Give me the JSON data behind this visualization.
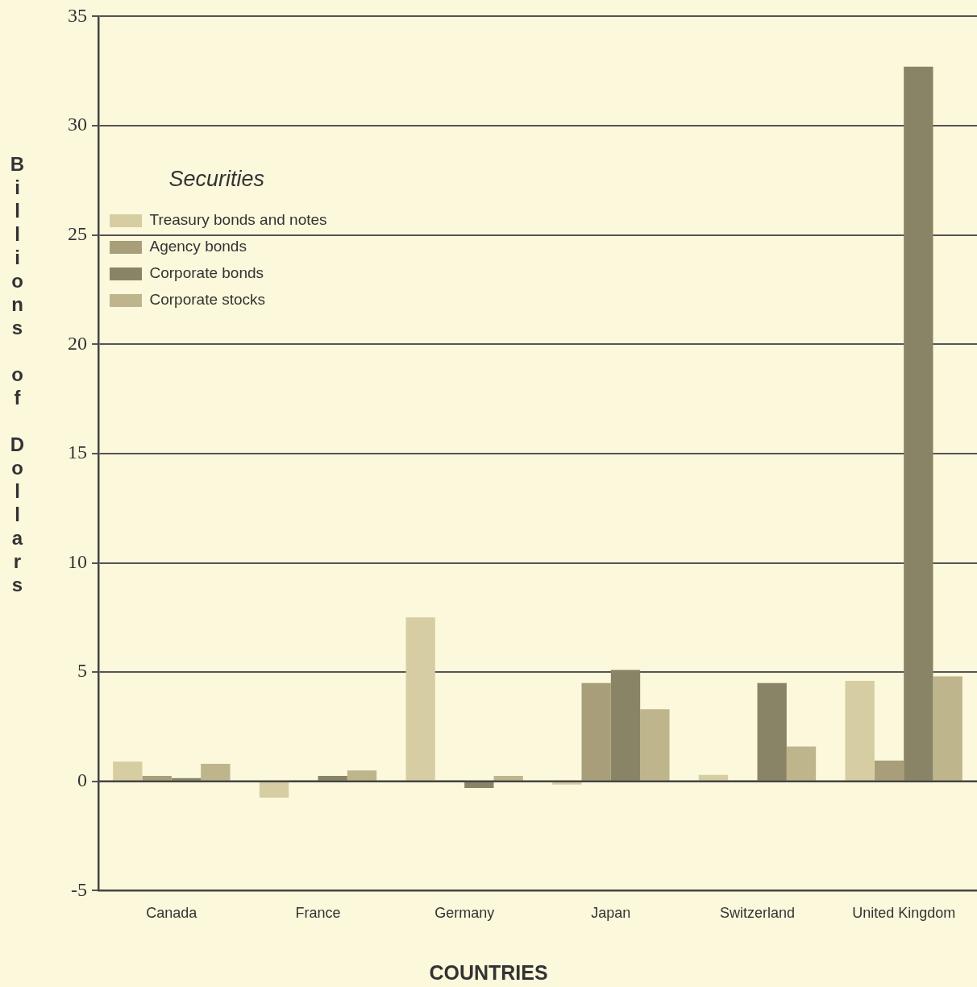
{
  "chart_data": {
    "type": "bar",
    "xlabel": "COUNTRIES",
    "ylabel": "Billions of Dollars",
    "legend_title": "Securities",
    "legend": "top left",
    "grid": "y",
    "categories": [
      "Canada",
      "France",
      "Germany",
      "Japan",
      "Switzerland",
      "United Kingdom"
    ],
    "ylim": [
      -5,
      35
    ],
    "yticks": [
      -5,
      0,
      5,
      10,
      15,
      20,
      25,
      30,
      35
    ],
    "series": [
      {
        "name": "Treasury bonds and notes",
        "color": "#d6cea2",
        "values": [
          0.9,
          -0.75,
          7.5,
          -0.15,
          0.3,
          4.6
        ]
      },
      {
        "name": "Agency bonds",
        "color": "#a89f7a",
        "values": [
          0.25,
          0.05,
          0.05,
          4.5,
          0.05,
          0.95
        ]
      },
      {
        "name": "Corporate bonds",
        "color": "#8a8466",
        "values": [
          0.15,
          0.25,
          -0.3,
          5.1,
          4.5,
          32.7
        ]
      },
      {
        "name": "Corporate stocks",
        "color": "#bfb58c",
        "values": [
          0.8,
          0.5,
          0.25,
          3.3,
          1.6,
          4.8
        ]
      }
    ]
  }
}
